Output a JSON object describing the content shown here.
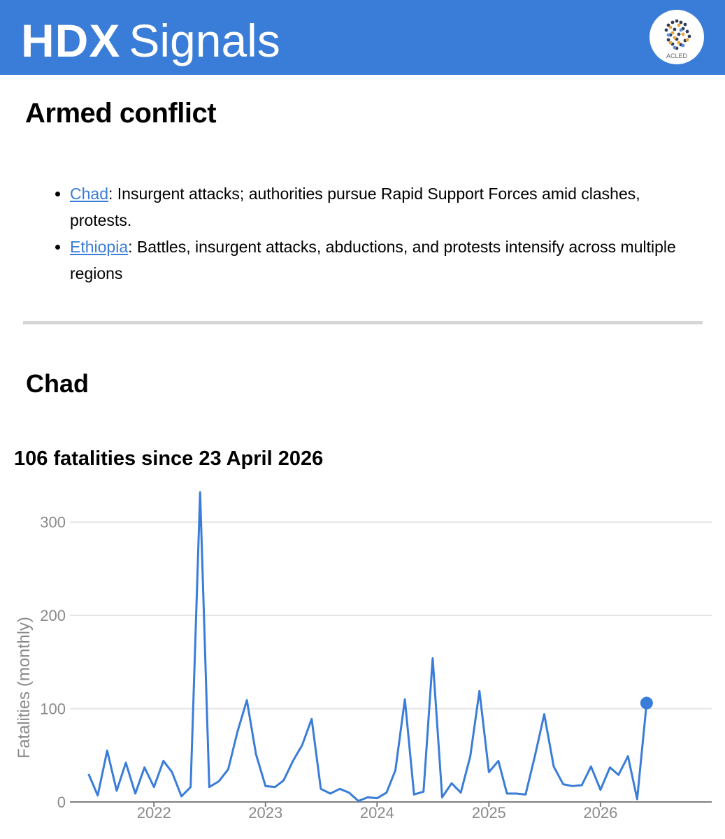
{
  "header": {
    "brand_bold": "HDX",
    "brand_light": "Signals",
    "logo_label": "ACLED",
    "background": "#3a7dd8"
  },
  "section_title": "Armed conflict",
  "signals": [
    {
      "link": "Chad",
      "text": ": Insurgent attacks; authorities pursue Rapid Support Forces amid clashes, protests."
    },
    {
      "link": "Ethiopia",
      "text": ": Battles, insurgent attacks, abductions, and protests intensify across multiple regions"
    }
  ],
  "country_heading": "Chad",
  "chart_data": {
    "type": "line",
    "title": "106 fatalities since 23 April 2026",
    "ylabel": "Fatalities (monthly)",
    "xlabel": "",
    "ylim": [
      0,
      335
    ],
    "xlim": [
      "2021-04-01",
      "2026-12-31"
    ],
    "yticks": [
      0,
      100,
      200,
      300
    ],
    "xticks": [
      "2022",
      "2023",
      "2024",
      "2025",
      "2026"
    ],
    "grid": true,
    "color": "#3a7dd8",
    "series": [
      {
        "x": [
          "2021-06",
          "2021-07",
          "2021-08",
          "2021-09",
          "2021-10",
          "2021-11",
          "2021-12",
          "2022-01",
          "2022-02",
          "2022-03",
          "2022-04",
          "2022-05",
          "2022-06",
          "2022-07",
          "2022-08",
          "2022-09",
          "2022-10",
          "2022-11",
          "2022-12",
          "2023-01",
          "2023-02",
          "2023-03",
          "2023-04",
          "2023-05",
          "2023-06",
          "2023-07",
          "2023-08",
          "2023-09",
          "2023-10",
          "2023-11",
          "2023-12",
          "2024-01",
          "2024-02",
          "2024-03",
          "2024-04",
          "2024-05",
          "2024-06",
          "2024-07",
          "2024-08",
          "2024-09",
          "2024-10",
          "2024-11",
          "2024-12",
          "2025-01",
          "2025-02",
          "2025-03",
          "2025-04",
          "2025-05",
          "2025-06",
          "2025-07",
          "2025-08",
          "2025-09",
          "2025-10",
          "2025-11",
          "2025-12",
          "2026-01",
          "2026-02",
          "2026-03",
          "2026-04",
          "2026-05",
          "2026-06"
        ],
        "values": [
          30,
          7,
          55,
          12,
          42,
          9,
          37,
          16,
          44,
          32,
          6,
          16,
          332,
          16,
          22,
          35,
          75,
          109,
          51,
          17,
          16,
          23,
          44,
          61,
          89,
          14,
          9,
          14,
          10,
          1,
          5,
          4,
          10,
          34,
          110,
          8,
          11,
          154,
          5,
          20,
          10,
          49,
          119,
          32,
          44,
          9,
          9,
          8,
          50,
          94,
          38,
          19,
          17,
          18,
          38,
          13,
          37,
          29,
          49,
          3,
          106
        ]
      }
    ],
    "highlight": {
      "x": "2026-06",
      "value": 106
    }
  }
}
